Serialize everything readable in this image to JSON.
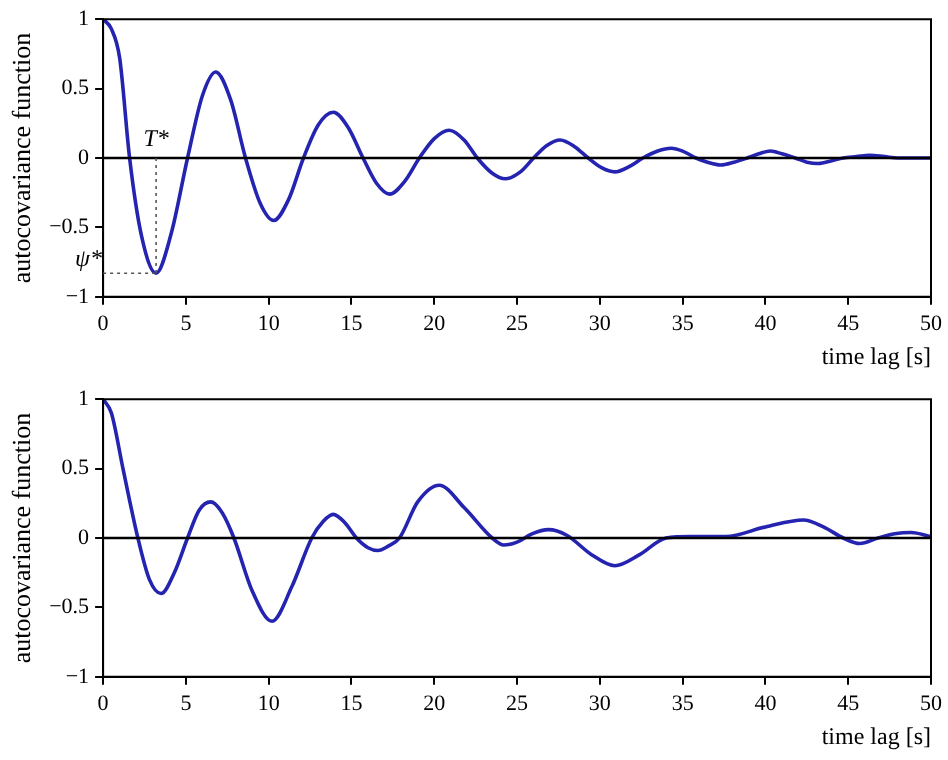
{
  "chart_data": [
    {
      "type": "line",
      "ylabel": "autocovariance function",
      "xlabel": "time lag [s]",
      "xlim": [
        0,
        50
      ],
      "xticks": [
        0,
        5,
        10,
        15,
        20,
        25,
        30,
        35,
        40,
        45,
        50
      ],
      "ylim": [
        -1,
        1
      ],
      "yticks": [
        -1,
        -0.5,
        0,
        0.5,
        1
      ],
      "grid": false,
      "legend": false,
      "series": [
        {
          "color": "#2424b0",
          "x": [
            0,
            0.5,
            1,
            1.6,
            2.3,
            3.2,
            4.1,
            5.1,
            6,
            6.8,
            7.7,
            8.6,
            9.5,
            10.3,
            11.2,
            12.1,
            13,
            13.9,
            14.8,
            15.7,
            16.5,
            17.3,
            18.2,
            19.1,
            20,
            20.9,
            21.8,
            22.6,
            23.5,
            24.3,
            25.2,
            26,
            26.8,
            27.6,
            28.5,
            29.3,
            30.1,
            30.9,
            31.8,
            32.6,
            33.5,
            34.3,
            35,
            35.8,
            36.5,
            37.3,
            38.1,
            38.9,
            39.6,
            40.3,
            41,
            41.8,
            42.5,
            43.2,
            44,
            44.7,
            45.5,
            46.3,
            47.2,
            48,
            50
          ],
          "values": [
            1,
            0.93,
            0.72,
            0,
            -0.55,
            -0.83,
            -0.55,
            0,
            0.45,
            0.62,
            0.42,
            0,
            -0.33,
            -0.45,
            -0.3,
            0,
            0.24,
            0.33,
            0.22,
            0,
            -0.18,
            -0.26,
            -0.17,
            0,
            0.14,
            0.2,
            0.13,
            0,
            -0.11,
            -0.15,
            -0.1,
            0,
            0.09,
            0.13,
            0.08,
            0,
            -0.07,
            -0.1,
            -0.06,
            0,
            0.05,
            0.07,
            0.05,
            0,
            -0.03,
            -0.05,
            -0.03,
            0,
            0.03,
            0.05,
            0.03,
            0,
            -0.03,
            -0.04,
            -0.02,
            0,
            0.01,
            0.02,
            0.01,
            0,
            0
          ]
        }
      ],
      "ref_lines": [
        {
          "axis": "y",
          "value": 0,
          "color": "#000000"
        }
      ],
      "annotations": [
        {
          "text": "T*",
          "x": 3.2,
          "y": -0.83
        },
        {
          "text": "ψ*",
          "x": 3.2,
          "y": -0.83
        }
      ]
    },
    {
      "type": "line",
      "ylabel": "autocovariance function",
      "xlabel": "time lag [s]",
      "xlim": [
        0,
        50
      ],
      "xticks": [
        0,
        5,
        10,
        15,
        20,
        25,
        30,
        35,
        40,
        45,
        50
      ],
      "ylim": [
        -1,
        1
      ],
      "yticks": [
        -1,
        -0.5,
        0,
        0.5,
        1
      ],
      "grid": false,
      "legend": false,
      "series": [
        {
          "color": "#2424b0",
          "x": [
            0,
            0.5,
            1.2,
            2.1,
            2.8,
            3.5,
            4.3,
            5.1,
            5.8,
            6.5,
            7.2,
            7.9,
            9,
            10.2,
            11.4,
            12.6,
            13.3,
            13.9,
            14.6,
            15.3,
            16,
            16.6,
            17.2,
            17.9,
            19,
            20.3,
            21.8,
            23.5,
            24.2,
            25,
            25.9,
            26.9,
            28,
            29.5,
            30.9,
            32.4,
            34,
            35.5,
            37.6,
            40,
            42.3,
            43.5,
            44.7,
            45.7,
            46.8,
            47.8,
            48.8,
            50
          ],
          "values": [
            1,
            0.9,
            0.5,
            0,
            -0.3,
            -0.4,
            -0.25,
            0,
            0.2,
            0.26,
            0.18,
            0,
            -0.38,
            -0.6,
            -0.35,
            0,
            0.12,
            0.17,
            0.11,
            0,
            -0.07,
            -0.09,
            -0.06,
            0,
            0.26,
            0.38,
            0.22,
            0,
            -0.05,
            -0.03,
            0.03,
            0.06,
            0.02,
            -0.12,
            -0.2,
            -0.12,
            0,
            0.01,
            0.01,
            0.08,
            0.13,
            0.08,
            0,
            -0.04,
            0,
            0.03,
            0.04,
            0.01
          ]
        }
      ],
      "ref_lines": [
        {
          "axis": "y",
          "value": 0,
          "color": "#000000"
        }
      ]
    }
  ]
}
